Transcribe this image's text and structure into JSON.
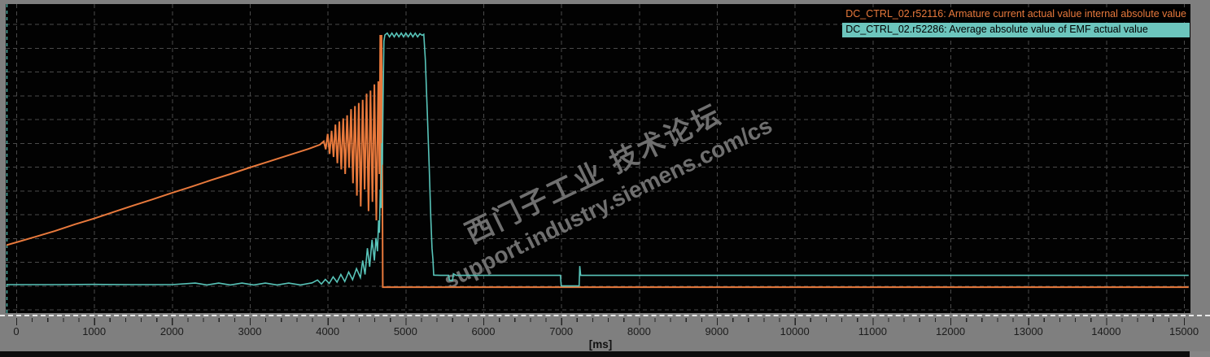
{
  "legend": {
    "series1_label": "DC_CTRL_02.r52116: Armature current actual value internal absolute value",
    "series2_label": "DC_CTRL_02.r52286: Average absolute value of EMF actual value"
  },
  "watermark": {
    "line1": "西门子工业 技术论坛",
    "line2": "support.industry.siemens.com/cs"
  },
  "x_axis": {
    "unit_label": "[ms]",
    "tick_labels": [
      "0",
      "1000",
      "2000",
      "3000",
      "4000",
      "5000",
      "6000",
      "7000",
      "8000",
      "9000",
      "10000",
      "11000",
      "12000",
      "13000",
      "14000",
      "15000"
    ],
    "major_tick_ms": 1000,
    "minor_tick_ms": 200,
    "range_ms": [
      0,
      15000
    ]
  },
  "colors": {
    "plot_background": "#020202",
    "frame_gray": "#7f7f7f",
    "grid": "#4a4a4a",
    "series1_orange": "#e8793c",
    "series2_cyan": "#58c4b9",
    "legend2_band": "#6cc5bd",
    "watermark_gray": "#6f6f6f",
    "axis_text": "#1c1c1c"
  },
  "chart_data": {
    "type": "line",
    "title": "",
    "xlabel": "[ms]",
    "x_range_ms": [
      0,
      15000
    ],
    "grid": true,
    "y_axis_labels_visible": false,
    "y_unit": "percent of plot height from bottom (no y-axis scale shown in trace)",
    "legend_position": "top-right",
    "cursor_line": {
      "style": "dashed",
      "color": "#58c4b9",
      "position": "left-edge"
    },
    "series": [
      {
        "name": "DC_CTRL_02.r52116 Armature current actual value internal absolute value",
        "color": "#e8793c",
        "points": [
          [
            -125,
            22.0
          ],
          [
            0,
            22.9
          ],
          [
            250,
            24.7
          ],
          [
            500,
            26.6
          ],
          [
            750,
            28.7
          ],
          [
            1000,
            30.6
          ],
          [
            1250,
            32.7
          ],
          [
            1500,
            34.8
          ],
          [
            1750,
            36.8
          ],
          [
            2000,
            38.9
          ],
          [
            2250,
            40.9
          ],
          [
            2500,
            43.0
          ],
          [
            2750,
            45.0
          ],
          [
            3000,
            47.1
          ],
          [
            3250,
            49.1
          ],
          [
            3500,
            51.1
          ],
          [
            3750,
            53.1
          ],
          [
            3900,
            54.5
          ],
          [
            3950,
            55.6
          ],
          [
            3975,
            53.0
          ],
          [
            4000,
            58.0
          ],
          [
            4025,
            51.5
          ],
          [
            4050,
            59.0
          ],
          [
            4075,
            50.5
          ],
          [
            4100,
            61.0
          ],
          [
            4125,
            48.5
          ],
          [
            4150,
            62.0
          ],
          [
            4175,
            46.5
          ],
          [
            4200,
            63.0
          ],
          [
            4225,
            45.0
          ],
          [
            4250,
            64.0
          ],
          [
            4275,
            47.0
          ],
          [
            4300,
            66.0
          ],
          [
            4325,
            42.0
          ],
          [
            4350,
            67.0
          ],
          [
            4375,
            38.0
          ],
          [
            4400,
            68.0
          ],
          [
            4425,
            34.5
          ],
          [
            4450,
            69.0
          ],
          [
            4475,
            40.0
          ],
          [
            4500,
            71.0
          ],
          [
            4525,
            33.0
          ],
          [
            4550,
            72.0
          ],
          [
            4575,
            36.0
          ],
          [
            4600,
            74.0
          ],
          [
            4625,
            30.0
          ],
          [
            4650,
            75.0
          ],
          [
            4665,
            45.0
          ],
          [
            4675,
            90.0
          ],
          [
            4683,
            39.0
          ],
          [
            4692,
            90.0
          ],
          [
            4700,
            60.0
          ],
          [
            4708,
            8.4
          ],
          [
            5000,
            8.4
          ],
          [
            7000,
            8.4
          ],
          [
            10000,
            8.4
          ],
          [
            15060,
            8.4
          ]
        ]
      },
      {
        "name": "DC_CTRL_02.r52286 Average absolute value of EMF actual value",
        "color": "#58c4b9",
        "points": [
          [
            -125,
            9.2
          ],
          [
            500,
            9.2
          ],
          [
            1000,
            9.3
          ],
          [
            1500,
            9.2
          ],
          [
            2000,
            9.2
          ],
          [
            2300,
            9.7
          ],
          [
            2450,
            9.1
          ],
          [
            2600,
            9.7
          ],
          [
            2750,
            9.1
          ],
          [
            2900,
            9.7
          ],
          [
            3050,
            9.1
          ],
          [
            3200,
            9.7
          ],
          [
            3350,
            9.1
          ],
          [
            3500,
            9.7
          ],
          [
            3650,
            9.1
          ],
          [
            3800,
            9.8
          ],
          [
            3870,
            10.7
          ],
          [
            3920,
            9.4
          ],
          [
            3970,
            10.9
          ],
          [
            4020,
            9.6
          ],
          [
            4070,
            11.7
          ],
          [
            4120,
            10.0
          ],
          [
            4170,
            12.5
          ],
          [
            4220,
            10.2
          ],
          [
            4270,
            13.3
          ],
          [
            4320,
            10.8
          ],
          [
            4370,
            14.4
          ],
          [
            4420,
            11.5
          ],
          [
            4450,
            17.0
          ],
          [
            4480,
            12.5
          ],
          [
            4510,
            21.0
          ],
          [
            4540,
            15.0
          ],
          [
            4570,
            23.7
          ],
          [
            4600,
            17.0
          ],
          [
            4620,
            24.3
          ],
          [
            4640,
            20.0
          ],
          [
            4655,
            30.0
          ],
          [
            4665,
            26.0
          ],
          [
            4675,
            40.0
          ],
          [
            4685,
            34.0
          ],
          [
            4695,
            55.0
          ],
          [
            4703,
            48.0
          ],
          [
            4712,
            70.0
          ],
          [
            4722,
            88.0
          ],
          [
            4735,
            90.0
          ],
          [
            4765,
            90.6
          ],
          [
            4795,
            89.4
          ],
          [
            4825,
            90.6
          ],
          [
            4855,
            89.4
          ],
          [
            4885,
            90.6
          ],
          [
            4915,
            89.4
          ],
          [
            4945,
            90.6
          ],
          [
            4975,
            89.4
          ],
          [
            5005,
            90.6
          ],
          [
            5035,
            89.4
          ],
          [
            5065,
            90.6
          ],
          [
            5095,
            89.4
          ],
          [
            5125,
            90.6
          ],
          [
            5155,
            89.4
          ],
          [
            5185,
            90.4
          ],
          [
            5215,
            89.9
          ],
          [
            5235,
            90.2
          ],
          [
            5255,
            82.0
          ],
          [
            5280,
            65.0
          ],
          [
            5305,
            47.0
          ],
          [
            5325,
            31.0
          ],
          [
            5340,
            21.0
          ],
          [
            5352,
            17.5
          ],
          [
            5362,
            12.3
          ],
          [
            5450,
            12.2
          ],
          [
            5555,
            12.2
          ],
          [
            5565,
            10.6
          ],
          [
            5605,
            10.6
          ],
          [
            5615,
            12.7
          ],
          [
            5650,
            12.2
          ],
          [
            6000,
            12.2
          ],
          [
            6500,
            12.2
          ],
          [
            6990,
            12.2
          ],
          [
            7000,
            8.8
          ],
          [
            7230,
            8.8
          ],
          [
            7238,
            15.2
          ],
          [
            7250,
            12.2
          ],
          [
            8000,
            12.2
          ],
          [
            10000,
            12.2
          ],
          [
            12000,
            12.2
          ],
          [
            14000,
            12.2
          ],
          [
            15060,
            12.2
          ]
        ]
      }
    ]
  }
}
